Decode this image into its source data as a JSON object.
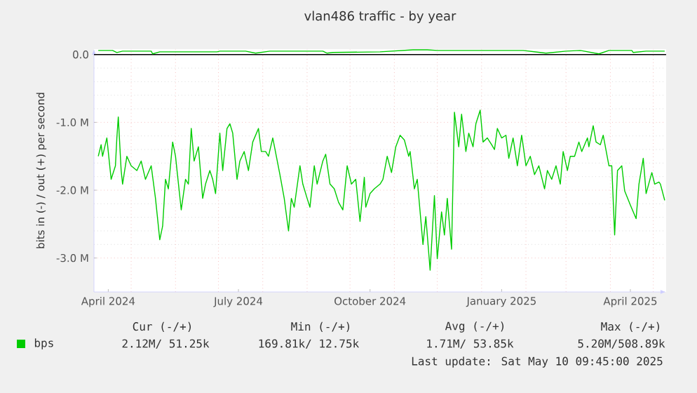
{
  "chart_data": {
    "type": "line",
    "title": "vlan486 traffic - by year",
    "ylabel": "bits in (-) / out (+) per second",
    "xlim": [
      "2024-04-05",
      "2025-05-10"
    ],
    "xticks": [
      {
        "value": "2024-04-15",
        "label": "April 2024"
      },
      {
        "value": "2024-07-15",
        "label": "July 2024"
      },
      {
        "value": "2024-10-15",
        "label": "October 2024"
      },
      {
        "value": "2025-01-15",
        "label": "January 2025"
      },
      {
        "value": "2025-04-15",
        "label": "April 2025"
      }
    ],
    "ylim": [
      -3.5,
      0.08
    ],
    "yticks": [
      {
        "value": -3,
        "label": "-3.0 M"
      },
      {
        "value": -2,
        "label": "-2.0 M"
      },
      {
        "value": -1,
        "label": "-1.0 M"
      },
      {
        "value": 0,
        "label": "0.0"
      }
    ],
    "grid": true,
    "legend": "bottom left",
    "marker": "none",
    "line_style": "solid",
    "ref_lines": [
      {
        "axis": "y",
        "value": 0,
        "color": "#000000"
      }
    ],
    "series": [
      {
        "name": "bps",
        "color": "#00cc00",
        "x": [
          "2024-04-08",
          "2024-04-10",
          "2024-04-11",
          "2024-04-14",
          "2024-04-17",
          "2024-04-20",
          "2024-04-21",
          "2024-04-22",
          "2024-04-24",
          "2024-04-25",
          "2024-04-28",
          "2024-05-01",
          "2024-05-05",
          "2024-05-08",
          "2024-05-11",
          "2024-05-15",
          "2024-05-18",
          "2024-05-21",
          "2024-05-23",
          "2024-05-25",
          "2024-05-27",
          "2024-05-30",
          "2024-06-01",
          "2024-06-05",
          "2024-06-08",
          "2024-06-10",
          "2024-06-12",
          "2024-06-14",
          "2024-06-17",
          "2024-06-20",
          "2024-06-22",
          "2024-06-25",
          "2024-06-27",
          "2024-06-29",
          "2024-07-02",
          "2024-07-04",
          "2024-07-07",
          "2024-07-09",
          "2024-07-11",
          "2024-07-14",
          "2024-07-16",
          "2024-07-19",
          "2024-07-22",
          "2024-07-25",
          "2024-07-29",
          "2024-07-31",
          "2024-08-03",
          "2024-08-05",
          "2024-08-08",
          "2024-08-13",
          "2024-08-16",
          "2024-08-19",
          "2024-08-21",
          "2024-08-23",
          "2024-08-27",
          "2024-08-29",
          "2024-09-01",
          "2024-09-03",
          "2024-09-06",
          "2024-09-08",
          "2024-09-12",
          "2024-09-14",
          "2024-09-17",
          "2024-09-20",
          "2024-09-23",
          "2024-09-26",
          "2024-09-29",
          "2024-10-02",
          "2024-10-05",
          "2024-10-08",
          "2024-10-11",
          "2024-10-12",
          "2024-10-15",
          "2024-10-18",
          "2024-10-22",
          "2024-10-24",
          "2024-10-27",
          "2024-10-30",
          "2024-11-02",
          "2024-11-05",
          "2024-11-08",
          "2024-11-11",
          "2024-11-12",
          "2024-11-15",
          "2024-11-17",
          "2024-11-21",
          "2024-11-23",
          "2024-11-26",
          "2024-11-29",
          "2024-12-01",
          "2024-12-04",
          "2024-12-06",
          "2024-12-08",
          "2024-12-11",
          "2024-12-13",
          "2024-12-16",
          "2024-12-18",
          "2024-12-21",
          "2024-12-23",
          "2024-12-26",
          "2024-12-28",
          "2024-12-31",
          "2025-01-02",
          "2025-01-05",
          "2025-01-08",
          "2025-01-10",
          "2025-01-12",
          "2025-01-15",
          "2025-01-18",
          "2025-01-20",
          "2025-01-23",
          "2025-01-26",
          "2025-01-29",
          "2025-02-01",
          "2025-02-04",
          "2025-02-07",
          "2025-02-10",
          "2025-02-14",
          "2025-02-16",
          "2025-02-19",
          "2025-02-22",
          "2025-02-25",
          "2025-02-27",
          "2025-03-02",
          "2025-03-04",
          "2025-03-07",
          "2025-03-10",
          "2025-03-12",
          "2025-03-16",
          "2025-03-17",
          "2025-03-20",
          "2025-03-22",
          "2025-03-25",
          "2025-03-27",
          "2025-03-31",
          "2025-04-02",
          "2025-04-04",
          "2025-04-06",
          "2025-04-09",
          "2025-04-11",
          "2025-04-15",
          "2025-04-19",
          "2025-04-21",
          "2025-04-24",
          "2025-04-26",
          "2025-04-30",
          "2025-05-02",
          "2025-05-05",
          "2025-05-06",
          "2025-05-09"
        ],
        "values": [
          -1.5,
          -1.33,
          -1.5,
          -1.23,
          -1.84,
          -1.64,
          -1.23,
          -0.92,
          -1.71,
          -1.91,
          -1.5,
          -1.64,
          -1.71,
          -1.57,
          -1.84,
          -1.64,
          -2.12,
          -2.73,
          -2.53,
          -1.84,
          -1.98,
          -1.29,
          -1.5,
          -2.29,
          -1.84,
          -1.91,
          -1.09,
          -1.57,
          -1.36,
          -2.12,
          -1.91,
          -1.71,
          -1.84,
          -2.05,
          -1.16,
          -1.71,
          -1.09,
          -1.02,
          -1.16,
          -1.84,
          -1.57,
          -1.43,
          -1.71,
          -1.29,
          -1.09,
          -1.43,
          -1.43,
          -1.5,
          -1.23,
          -1.77,
          -2.12,
          -2.6,
          -2.12,
          -2.25,
          -1.64,
          -1.91,
          -2.12,
          -2.25,
          -1.64,
          -1.91,
          -1.57,
          -1.47,
          -1.91,
          -1.98,
          -2.18,
          -2.29,
          -1.64,
          -1.91,
          -1.84,
          -2.46,
          -1.81,
          -2.25,
          -2.05,
          -1.98,
          -1.91,
          -1.84,
          -1.5,
          -1.74,
          -1.36,
          -1.19,
          -1.26,
          -1.5,
          -1.43,
          -1.98,
          -1.84,
          -2.8,
          -2.39,
          -3.18,
          -2.08,
          -3.01,
          -2.32,
          -2.66,
          -2.12,
          -2.87,
          -0.85,
          -1.36,
          -0.88,
          -1.43,
          -1.16,
          -1.36,
          -1.02,
          -0.82,
          -1.29,
          -1.23,
          -1.33,
          -1.4,
          -1.09,
          -1.23,
          -1.19,
          -1.53,
          -1.23,
          -1.64,
          -1.19,
          -1.64,
          -1.5,
          -1.77,
          -1.64,
          -1.98,
          -1.71,
          -1.84,
          -1.64,
          -1.91,
          -1.43,
          -1.71,
          -1.5,
          -1.5,
          -1.29,
          -1.43,
          -1.23,
          -1.36,
          -1.05,
          -1.29,
          -1.33,
          -1.19,
          -1.64,
          -1.64,
          -2.66,
          -1.71,
          -1.64,
          -2.01,
          -2.22,
          -2.42,
          -1.91,
          -1.53,
          -2.05,
          -1.74,
          -1.91,
          -1.88,
          -1.91,
          -2.15
        ]
      },
      {
        "color": "#00cc00",
        "x": [
          "2024-04-08",
          "2024-04-18",
          "2024-04-21",
          "2024-04-25",
          "2024-05-15",
          "2024-05-16",
          "2024-05-21",
          "2024-06-30",
          "2024-07-02",
          "2024-07-20",
          "2024-07-27",
          "2024-08-06",
          "2024-09-12",
          "2024-09-15",
          "2024-09-19",
          "2024-10-22",
          "2024-11-14",
          "2024-11-24",
          "2024-12-01",
          "2025-01-30",
          "2025-02-15",
          "2025-03-01",
          "2025-03-11",
          "2025-03-24",
          "2025-03-31",
          "2025-04-16",
          "2025-04-17",
          "2025-04-26",
          "2025-05-09"
        ],
        "values": [
          0.06,
          0.06,
          0.03,
          0.05,
          0.05,
          0.01,
          0.04,
          0.04,
          0.05,
          0.05,
          0.02,
          0.05,
          0.05,
          0.02,
          0.03,
          0.04,
          0.07,
          0.07,
          0.06,
          0.06,
          0.02,
          0.05,
          0.06,
          0.01,
          0.06,
          0.06,
          0.03,
          0.05,
          0.05
        ]
      }
    ],
    "annotations": [
      "Cur (-/+)",
      "Min (-/+)",
      "Avg (-/+)",
      "Max (-/+)",
      "2.12M/ 51.25k",
      "169.81k/ 12.75k",
      "1.71M/ 53.85k",
      "5.20M/508.89k",
      "Last update: Sat May 10 09:45:00 2025"
    ]
  }
}
